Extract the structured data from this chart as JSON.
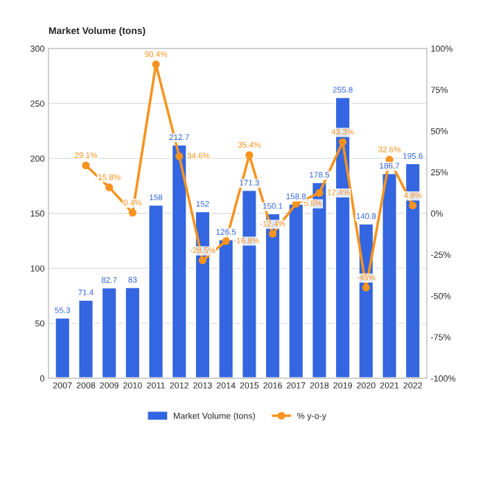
{
  "chart_data": {
    "type": "bar",
    "title": "Market Volume (tons)",
    "categories": [
      "2007",
      "2008",
      "2009",
      "2010",
      "2011",
      "2012",
      "2013",
      "2014",
      "2015",
      "2016",
      "2017",
      "2018",
      "2019",
      "2020",
      "2021",
      "2022"
    ],
    "series": [
      {
        "name": "Market Volume (tons)",
        "color": "#3366e0",
        "values": [
          55.3,
          71.4,
          82.7,
          83,
          158,
          212.7,
          152,
          126.5,
          171.3,
          150.1,
          158.8,
          178.5,
          255.8,
          140.8,
          186.7,
          195.6
        ],
        "value_labels": [
          "55.3",
          "71.4",
          "82.7",
          "83",
          "158",
          "212.7",
          "152",
          "126.5",
          "171.3",
          "150.1",
          "158.8",
          "178.5",
          "255.8",
          "140.8",
          "186.7",
          "195.6"
        ]
      },
      {
        "name": "% y-o-y",
        "type": "line",
        "axis": "y2",
        "color": "#f7931e",
        "marker": "circle",
        "values": [
          null,
          29.1,
          15.8,
          0.4,
          90.4,
          34.6,
          -28.5,
          -16.8,
          35.4,
          -12.4,
          5.8,
          12.4,
          43.3,
          -45,
          32.6,
          4.8
        ],
        "value_labels": [
          null,
          "29.1%",
          "15.8%",
          "0.4%",
          "90.4%",
          "34.6%",
          "-28.5%",
          "-16.8%",
          "35.4%",
          "-12.4%",
          "5.8%",
          "12.4%",
          "43.3%",
          "-45%",
          "32.6%",
          "4.8%"
        ]
      }
    ],
    "ylim": [
      0,
      300
    ],
    "yticks": [
      0,
      50,
      100,
      150,
      200,
      250,
      300
    ],
    "y2lim": [
      -100,
      100
    ],
    "y2ticks": [
      {
        "value": -100,
        "label": "-100%"
      },
      {
        "value": -75,
        "label": "-75%"
      },
      {
        "value": -50,
        "label": "-50%"
      },
      {
        "value": -25,
        "label": "-25%"
      },
      {
        "value": 0,
        "label": "0%"
      },
      {
        "value": 25,
        "label": "25%"
      },
      {
        "value": 50,
        "label": "50%"
      },
      {
        "value": 75,
        "label": "75%"
      },
      {
        "value": 100,
        "label": "100%"
      }
    ],
    "grid": "y",
    "legend": "bottom"
  }
}
